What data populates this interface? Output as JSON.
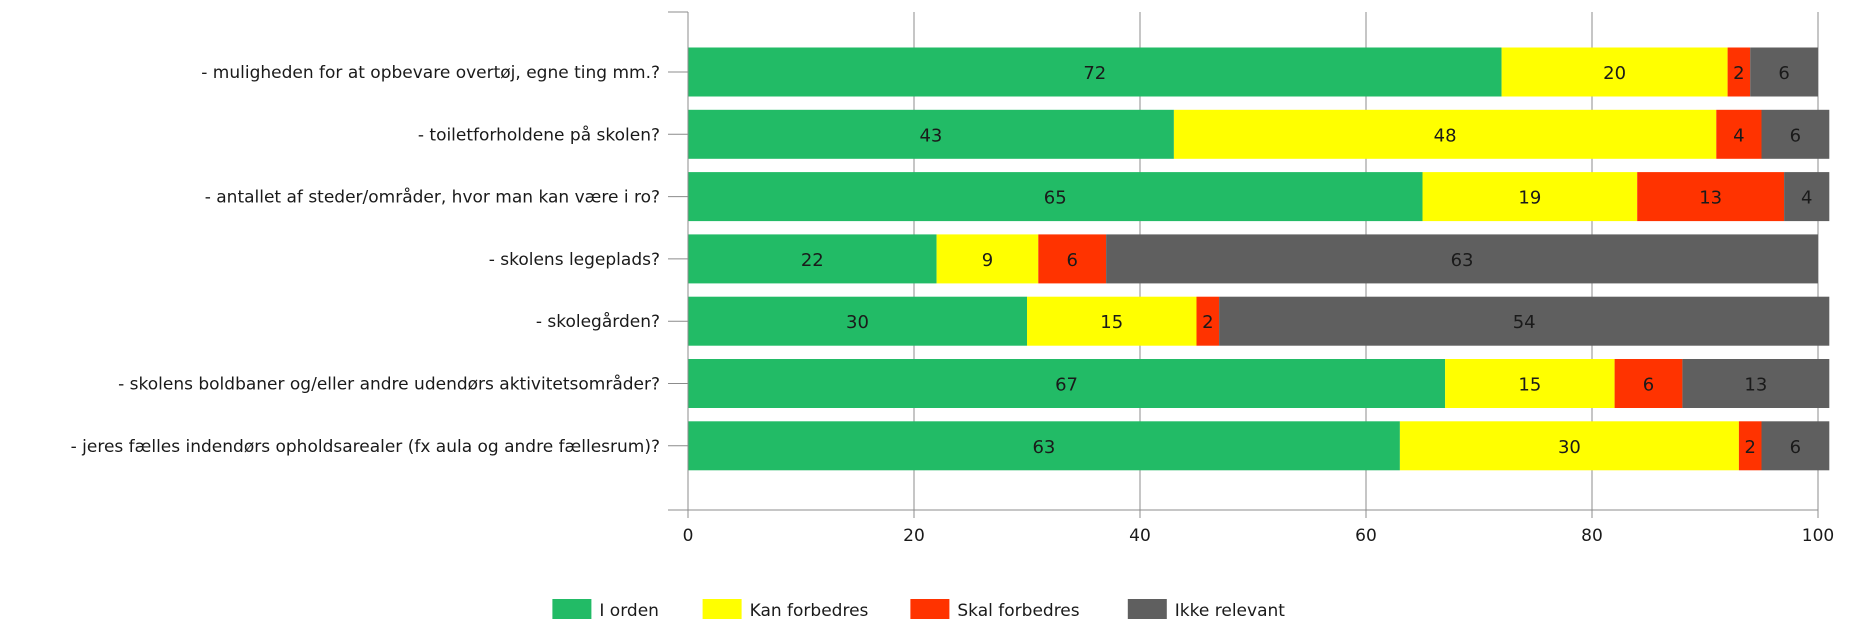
{
  "chart_data": {
    "type": "bar",
    "orientation": "horizontal",
    "stacked": true,
    "categories": [
      "- muligheden for at opbevare overtøj, egne ting mm.?",
      "- toiletforholdene på skolen?",
      "- antallet af steder/områder, hvor man kan være i ro?",
      "- skolens legeplads?",
      "- skolegården?",
      "- skolens boldbaner og/eller andre udendørs aktivitetsområder?",
      "- jeres fælles indendørs opholdsarealer (fx aula og andre fællesrum)?"
    ],
    "series": [
      {
        "name": "I orden",
        "color": "#22bb66",
        "values": [
          72,
          43,
          65,
          22,
          30,
          67,
          63
        ]
      },
      {
        "name": "Kan forbedres",
        "color": "#ffff00",
        "values": [
          20,
          48,
          19,
          9,
          15,
          15,
          30
        ]
      },
      {
        "name": "Skal forbedres",
        "color": "#ff3300",
        "values": [
          2,
          4,
          13,
          6,
          2,
          6,
          2
        ]
      },
      {
        "name": "Ikke relevant",
        "color": "#5f5f5f",
        "values": [
          6,
          6,
          4,
          63,
          54,
          13,
          6
        ]
      }
    ],
    "xlim": [
      0,
      100
    ],
    "xticks": [
      "0",
      "20",
      "40",
      "60",
      "80",
      "100"
    ],
    "grid": true,
    "legend": "bottom",
    "title": "",
    "xlabel": "",
    "ylabel": ""
  }
}
